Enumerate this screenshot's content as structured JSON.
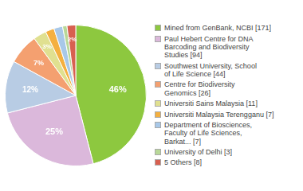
{
  "chart_data": {
    "type": "pie",
    "categories": [
      "Mined from GenBank, NCBI [171]",
      "Paul Hebert Centre for DNA\nBarcoding and Biodiversity\nStudies [94]",
      "Southwest University, School\nof Life Science [44]",
      "Centre for Biodiversity\nGenomics [26]",
      "Universiti Sains Malaysia [11]",
      "Universiti Malaysia Terengganu [7]",
      "Department of Biosciences,\nFaculty of Life Sciences,\nBarkat... [7]",
      "University of Delhi [3]",
      "5 Others [8]"
    ],
    "values": [
      46,
      25,
      12,
      7,
      3,
      2,
      2,
      1,
      2
    ],
    "value_labels": [
      "46%",
      "25%",
      "12%",
      "7%",
      "3%",
      null,
      null,
      null,
      "2%"
    ],
    "colors": [
      "#8dc83f",
      "#dbb8db",
      "#b8cce4",
      "#f4a070",
      "#e0e090",
      "#f4b040",
      "#a8c8e8",
      "#b8d898",
      "#d86050"
    ],
    "data_labels": true,
    "legend": "right"
  }
}
